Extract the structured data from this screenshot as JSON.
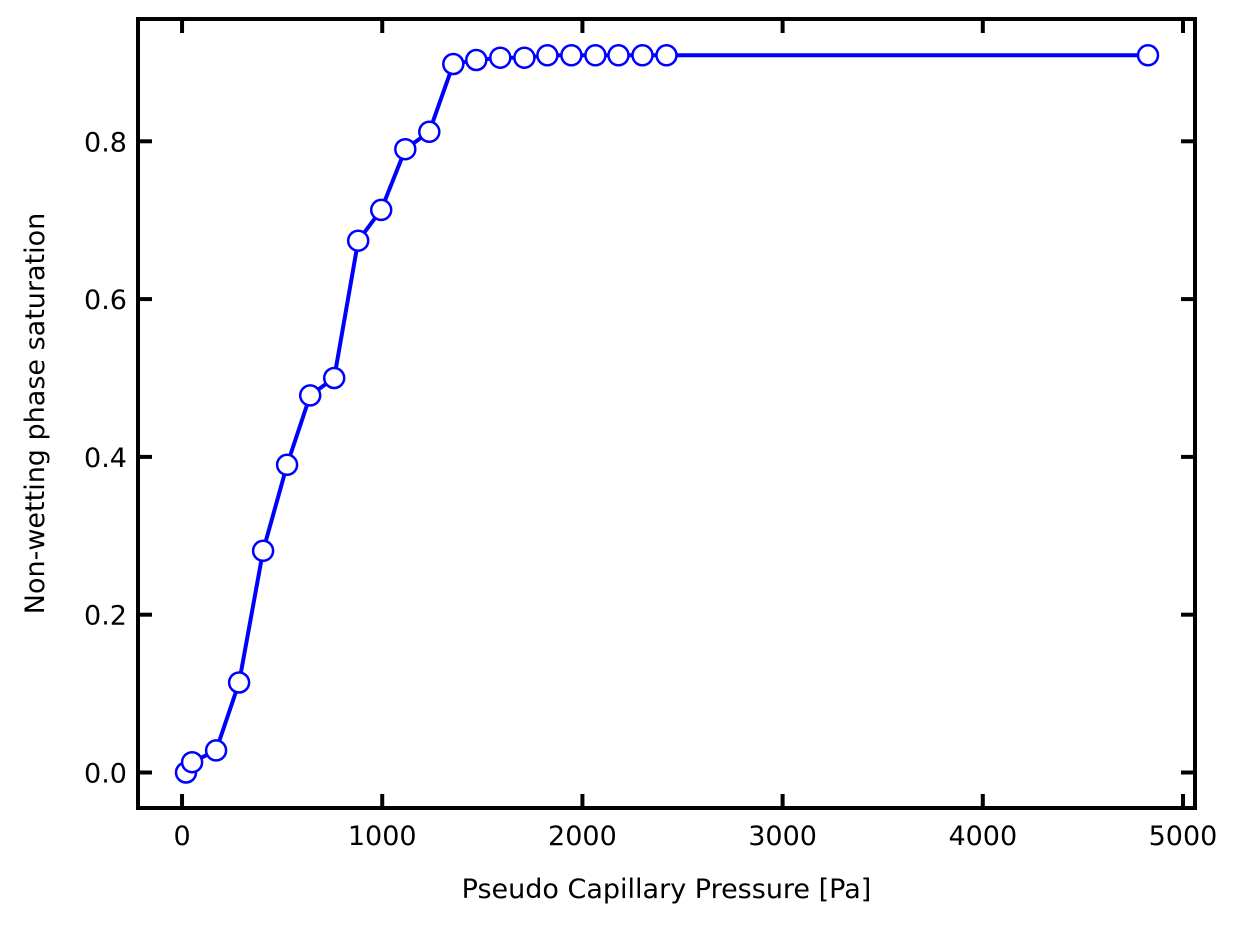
{
  "chart_data": {
    "type": "line",
    "title": "",
    "xlabel": "Pseudo Capillary Pressure [Pa]",
    "ylabel": "Non-wetting phase saturation",
    "xlim": [
      -220,
      5060
    ],
    "ylim": [
      -0.045,
      0.955
    ],
    "xticks": [
      0,
      1000,
      2000,
      3000,
      4000,
      5000
    ],
    "yticks": [
      0.0,
      0.2,
      0.4,
      0.6,
      0.8
    ],
    "xtick_labels": [
      "0",
      "1000",
      "2000",
      "3000",
      "4000",
      "5000"
    ],
    "ytick_labels": [
      "0.0",
      "0.2",
      "0.4",
      "0.6",
      "0.8"
    ],
    "grid": false,
    "legend": false,
    "series": [
      {
        "color": "#0000ff",
        "marker": "circle-open",
        "points": [
          [
            20,
            0.0
          ],
          [
            50,
            0.013
          ],
          [
            170,
            0.028
          ],
          [
            285,
            0.114
          ],
          [
            405,
            0.281
          ],
          [
            525,
            0.39
          ],
          [
            640,
            0.478
          ],
          [
            760,
            0.5
          ],
          [
            880,
            0.674
          ],
          [
            995,
            0.713
          ],
          [
            1115,
            0.79
          ],
          [
            1235,
            0.812
          ],
          [
            1355,
            0.898
          ],
          [
            1470,
            0.903
          ],
          [
            1590,
            0.906
          ],
          [
            1710,
            0.906
          ],
          [
            1825,
            0.909
          ],
          [
            1945,
            0.909
          ],
          [
            2065,
            0.909
          ],
          [
            2180,
            0.909
          ],
          [
            2300,
            0.909
          ],
          [
            2420,
            0.909
          ],
          [
            4825,
            0.909
          ]
        ]
      }
    ]
  }
}
